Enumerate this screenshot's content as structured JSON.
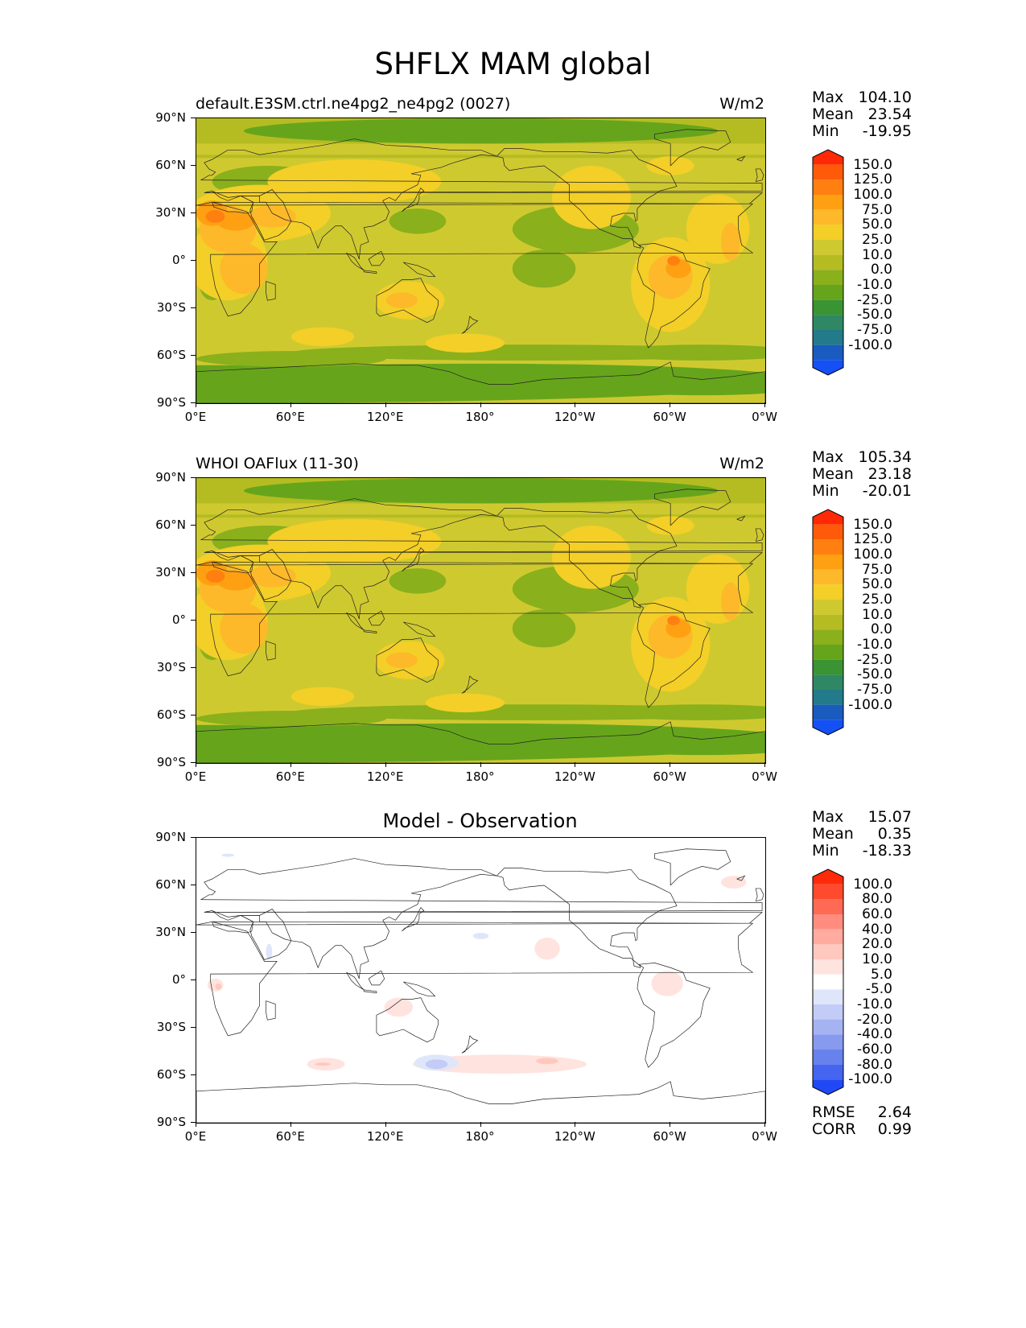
{
  "figure": {
    "title": "SHFLX MAM global"
  },
  "axes": {
    "lat_ticks": [
      "90°N",
      "60°N",
      "30°N",
      "0°",
      "30°S",
      "60°S",
      "90°S"
    ],
    "lon_ticks": [
      "0°E",
      "60°E",
      "120°E",
      "180°",
      "120°W",
      "60°W",
      "0°W"
    ]
  },
  "panels": [
    {
      "left_title": "default.E3SM.ctrl.ne4pg2_ne4pg2 (0027)",
      "center_title": "",
      "units": "W/m2",
      "stats": [
        {
          "label": "Max",
          "value": "104.10"
        },
        {
          "label": "Mean",
          "value": "23.54"
        },
        {
          "label": "Min",
          "value": "-19.95"
        }
      ],
      "extra_stats": [],
      "colorbar": {
        "labels": [
          "150.0",
          "125.0",
          "100.0",
          "75.0",
          "50.0",
          "25.0",
          "10.0",
          "0.0",
          "-10.0",
          "-25.0",
          "-50.0",
          "-75.0",
          "-100.0"
        ],
        "colors": [
          "#ff2a05",
          "#ff5a0a",
          "#ff7f10",
          "#ffa012",
          "#fdb92a",
          "#f3cf27",
          "#cfc930",
          "#b5bc22",
          "#8ab01c",
          "#66a51b",
          "#3a9433",
          "#2f8863",
          "#227a8a",
          "#1a5bbf",
          "#1550f5"
        ]
      }
    },
    {
      "left_title": "WHOI OAFlux (11-30)",
      "center_title": "",
      "units": "W/m2",
      "stats": [
        {
          "label": "Max",
          "value": "105.34"
        },
        {
          "label": "Mean",
          "value": "23.18"
        },
        {
          "label": "Min",
          "value": "-20.01"
        }
      ],
      "extra_stats": [],
      "colorbar": {
        "labels": [
          "150.0",
          "125.0",
          "100.0",
          "75.0",
          "50.0",
          "25.0",
          "10.0",
          "0.0",
          "-10.0",
          "-25.0",
          "-50.0",
          "-75.0",
          "-100.0"
        ],
        "colors": [
          "#ff2a05",
          "#ff5a0a",
          "#ff7f10",
          "#ffa012",
          "#fdb92a",
          "#f3cf27",
          "#cfc930",
          "#b5bc22",
          "#8ab01c",
          "#66a51b",
          "#3a9433",
          "#2f8863",
          "#227a8a",
          "#1a5bbf",
          "#1550f5"
        ]
      }
    },
    {
      "left_title": "",
      "center_title": "Model - Observation",
      "units": "",
      "stats": [
        {
          "label": "Max",
          "value": "15.07"
        },
        {
          "label": "Mean",
          "value": "0.35"
        },
        {
          "label": "Min",
          "value": "-18.33"
        }
      ],
      "extra_stats": [
        {
          "label": "RMSE",
          "value": "2.64"
        },
        {
          "label": "CORR",
          "value": "0.99"
        }
      ],
      "colorbar": {
        "labels": [
          "100.0",
          "80.0",
          "60.0",
          "40.0",
          "20.0",
          "10.0",
          "5.0",
          "-5.0",
          "-10.0",
          "-20.0",
          "-40.0",
          "-60.0",
          "-80.0",
          "-100.0"
        ],
        "colors": [
          "#ff2a0a",
          "#ff4a2e",
          "#ff6a55",
          "#ff8c7e",
          "#ffab9f",
          "#ffc8bf",
          "#ffe3de",
          "#ffffff",
          "#dfe6fa",
          "#c2ccf6",
          "#a6b3f2",
          "#879aef",
          "#6782ec",
          "#4564ef",
          "#2048f5"
        ]
      }
    }
  ]
}
